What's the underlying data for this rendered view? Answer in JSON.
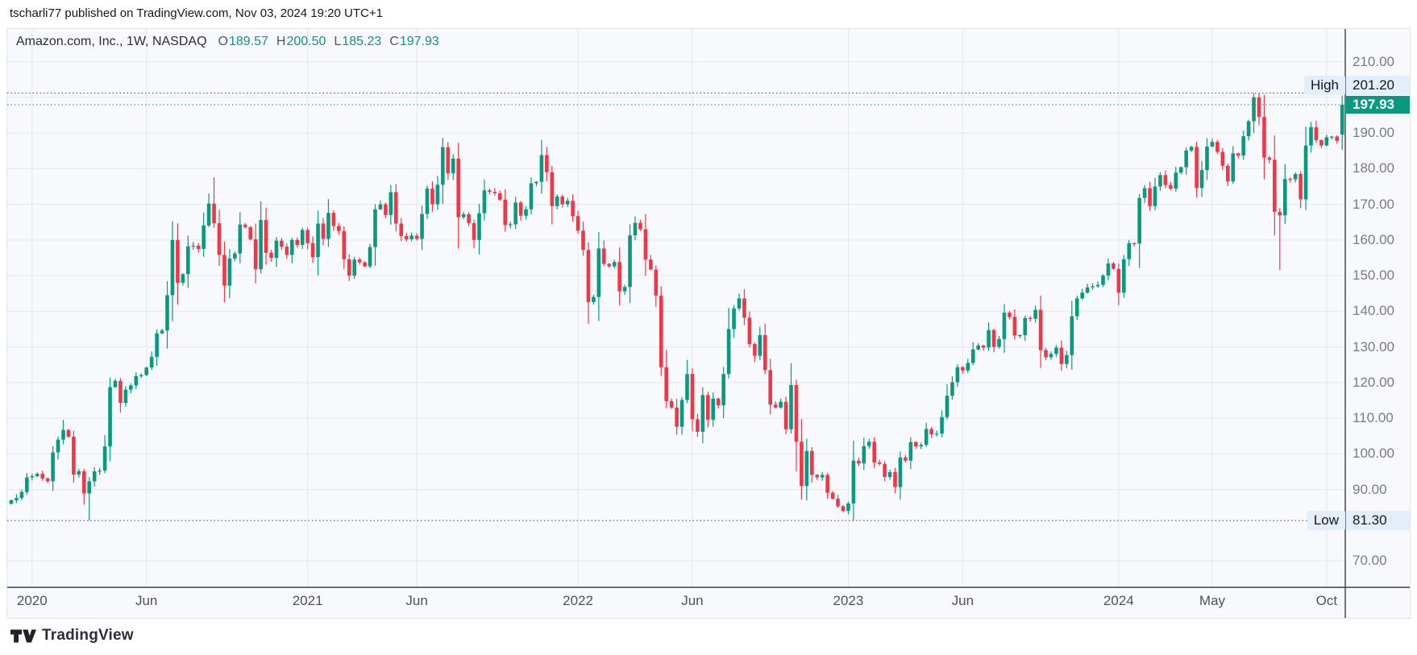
{
  "attribution": "tscharli77 published on TradingView.com, Nov 03, 2024 19:20 UTC+1",
  "legend": {
    "symbol_title": "Amazon.com, Inc., 1W, NASDAQ",
    "o_label": "O",
    "o_value": "189.57",
    "h_label": "H",
    "h_value": "200.50",
    "l_label": "L",
    "l_value": "185.23",
    "c_label": "C",
    "c_value": "197.93"
  },
  "price_axis": {
    "high_label": "High",
    "high_value": "201.20",
    "low_label": "Low",
    "low_value": "81.30",
    "last_price": "197.93",
    "scale_labels": [
      {
        "text": "210.00",
        "price": 210
      },
      {
        "text": "190.00",
        "price": 190
      },
      {
        "text": "180.00",
        "price": 180
      },
      {
        "text": "170.00",
        "price": 170
      },
      {
        "text": "160.00",
        "price": 160
      },
      {
        "text": "150.00",
        "price": 150
      },
      {
        "text": "140.00",
        "price": 140
      },
      {
        "text": "130.00",
        "price": 130
      },
      {
        "text": "120.00",
        "price": 120
      },
      {
        "text": "110.00",
        "price": 110
      },
      {
        "text": "100.00",
        "price": 100
      },
      {
        "text": "90.00",
        "price": 90
      },
      {
        "text": "70.00",
        "price": 70
      }
    ]
  },
  "time_axis": {
    "ticks": [
      {
        "label": "2020",
        "week": 4
      },
      {
        "label": "Jun",
        "week": 26
      },
      {
        "label": "2021",
        "week": 57
      },
      {
        "label": "Jun",
        "week": 78
      },
      {
        "label": "2022",
        "week": 109
      },
      {
        "label": "Jun",
        "week": 131
      },
      {
        "label": "2023",
        "week": 161
      },
      {
        "label": "Jun",
        "week": 183
      },
      {
        "label": "2024",
        "week": 213
      },
      {
        "label": "May",
        "week": 231
      },
      {
        "label": "Oct",
        "week": 253
      }
    ]
  },
  "footer": {
    "brand": "TradingView"
  },
  "colors": {
    "up": "#089981",
    "down": "#F23645",
    "grid": "#E3E7F0",
    "axis_line": "#3A3E49",
    "dotted_extreme": "#42464F",
    "dotted_last": "#089981",
    "plot_bg": "#F7F9FC",
    "label_bg": "#E4EEFB",
    "axis_text": "#787B86",
    "time_text": "#4E525C"
  },
  "chart_data": {
    "type": "candlestick",
    "title": "Amazon.com, Inc., 1W, NASDAQ",
    "symbol": "Amazon.com, Inc.",
    "interval": "1W",
    "exchange": "NASDAQ",
    "legend_position": "top-left",
    "grid": true,
    "x_domain": "Dec 2019 - Nov 2024, one candle per week",
    "y_visible_range": [
      62,
      220
    ],
    "grid_prices": [
      70,
      90,
      100,
      110,
      120,
      130,
      140,
      150,
      160,
      170,
      180,
      190,
      200,
      210
    ],
    "range_high": 201.2,
    "range_low": 81.3,
    "last": {
      "open": 189.57,
      "high": 200.5,
      "low": 185.23,
      "close": 197.93
    },
    "start_open": 86.0,
    "weekly_closes": [
      87.0,
      87.6,
      89.3,
      93.4,
      93.75,
      94.4,
      93.1,
      92.3,
      100.4,
      104.0,
      106.7,
      104.8,
      94.2,
      95.1,
      88.9,
      92.3,
      95.1,
      95.3,
      102.1,
      118.7,
      120.5,
      114.3,
      118.0,
      119.2,
      121.8,
      122.1,
      124.2,
      127.2,
      133.8,
      134.6,
      144.5,
      160.0,
      148.0,
      150.4,
      158.2,
      158.4,
      157.5,
      164.1,
      170.2,
      164.7,
      155.8,
      147.2,
      154.8,
      156.2,
      164.3,
      163.6,
      160.2,
      151.8,
      165.6,
      156.4,
      155.0,
      159.8,
      158.1,
      155.8,
      160.0,
      158.6,
      162.8,
      159.1,
      155.2,
      164.6,
      160.3,
      167.6,
      163.9,
      162.5,
      154.6,
      150.0,
      154.5,
      153.7,
      152.6,
      158.0,
      168.6,
      170.0,
      167.0,
      173.4,
      164.6,
      161.1,
      160.2,
      161.2,
      160.3,
      167.3,
      174.4,
      170.0,
      175.5,
      186.0,
      178.7,
      182.8,
      166.4,
      167.2,
      164.7,
      160.0,
      167.5,
      173.9,
      173.5,
      173.1,
      171.3,
      164.2,
      164.4,
      170.5,
      166.8,
      168.6,
      175.9,
      176.3,
      183.8,
      179.0,
      169.5,
      172.2,
      170.0,
      171.0,
      166.7,
      162.6,
      157.2,
      142.6,
      144.0,
      157.6,
      153.3,
      152.6,
      153.8,
      145.6,
      146.8,
      161.3,
      164.8,
      163.0,
      154.5,
      151.7,
      144.4,
      124.3,
      114.8,
      113.0,
      107.6,
      115.1,
      122.4,
      109.7,
      106.2,
      116.5,
      109.6,
      115.5,
      113.6,
      122.4,
      135.0,
      140.8,
      143.6,
      138.2,
      130.8,
      127.5,
      133.3,
      123.5,
      113.8,
      113.0,
      114.6,
      106.9,
      119.3,
      103.4,
      91.0,
      100.8,
      94.1,
      93.4,
      94.1,
      89.1,
      87.4,
      85.3,
      84.0,
      86.1,
      98.1,
      97.3,
      102.2,
      103.4,
      97.6,
      97.2,
      93.5,
      94.9,
      90.7,
      99.0,
      98.1,
      103.3,
      102.1,
      102.5,
      107.0,
      105.5,
      105.7,
      110.3,
      116.3,
      120.1,
      124.3,
      123.4,
      125.5,
      129.3,
      130.4,
      129.8,
      134.7,
      130.0,
      132.2,
      139.6,
      138.4,
      133.2,
      133.3,
      138.1,
      137.9,
      140.4,
      129.1,
      127.1,
      128.0,
      129.8,
      125.2,
      127.7,
      138.6,
      143.6,
      145.2,
      146.7,
      147.0,
      147.4,
      150.0,
      153.4,
      151.9,
      145.2,
      154.6,
      159.1,
      159.0,
      171.8,
      174.5,
      169.5,
      175.0,
      178.2,
      175.4,
      174.4,
      178.9,
      180.4,
      185.1,
      186.1,
      174.6,
      179.6,
      186.2,
      187.5,
      184.7,
      180.8,
      176.4,
      184.3,
      183.7,
      189.1,
      193.3,
      200.0,
      194.5,
      183.1,
      182.5,
      167.9,
      166.9,
      177.1,
      177.0,
      178.5,
      171.4,
      186.5,
      191.6,
      188.0,
      186.5,
      188.8,
      189.0,
      187.8,
      197.93
    ],
    "overrides": {
      "10": {
        "high": 109.5
      },
      "15": {
        "low": 81.3
      },
      "39": {
        "high": 177.6
      },
      "102": {
        "high": 188.1
      },
      "240": {
        "high": 201.2
      },
      "244": {
        "low": 151.6
      },
      "256": {
        "open": 189.57,
        "high": 200.5,
        "low": 185.23,
        "close": 197.93
      }
    }
  }
}
